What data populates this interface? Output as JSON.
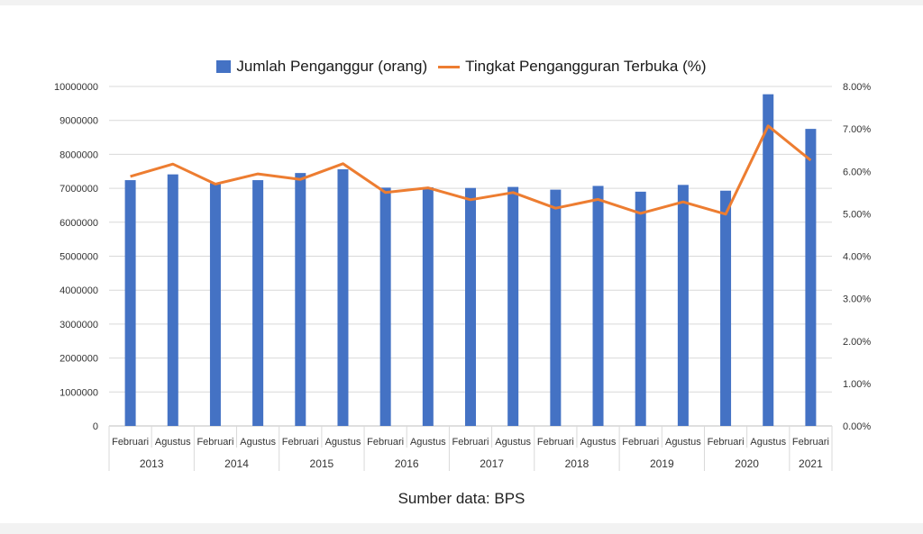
{
  "chart_data": {
    "type": "bar",
    "legend": {
      "bar_label": "Jumlah Penganggur (orang)",
      "line_label": "Tingkat Pengangguran Terbuka (%)",
      "placement": "top"
    },
    "categories": [
      {
        "month": "Februari",
        "year": "2013"
      },
      {
        "month": "Agustus",
        "year": "2013"
      },
      {
        "month": "Februari",
        "year": "2014"
      },
      {
        "month": "Agustus",
        "year": "2014"
      },
      {
        "month": "Februari",
        "year": "2015"
      },
      {
        "month": "Agustus",
        "year": "2015"
      },
      {
        "month": "Februari",
        "year": "2016"
      },
      {
        "month": "Agustus",
        "year": "2016"
      },
      {
        "month": "Februari",
        "year": "2017"
      },
      {
        "month": "Agustus",
        "year": "2017"
      },
      {
        "month": "Februari",
        "year": "2018"
      },
      {
        "month": "Agustus",
        "year": "2018"
      },
      {
        "month": "Februari",
        "year": "2019"
      },
      {
        "month": "Agustus",
        "year": "2019"
      },
      {
        "month": "Februari",
        "year": "2020"
      },
      {
        "month": "Agustus",
        "year": "2020"
      },
      {
        "month": "Februari",
        "year": "2021"
      }
    ],
    "year_groups": [
      "2013",
      "2014",
      "2015",
      "2016",
      "2017",
      "2018",
      "2019",
      "2020",
      "2021"
    ],
    "series": [
      {
        "name": "Jumlah Penganggur (orang)",
        "type": "bar",
        "axis": "left",
        "color": "#4472c4",
        "values": [
          7240000,
          7410000,
          7150000,
          7240000,
          7450000,
          7560000,
          7020000,
          7030000,
          7010000,
          7040000,
          6960000,
          7070000,
          6900000,
          7100000,
          6930000,
          9770000,
          8750000
        ]
      },
      {
        "name": "Tingkat Pengangguran Terbuka (%)",
        "type": "line",
        "axis": "right",
        "color": "#ed7d31",
        "values": [
          5.88,
          6.17,
          5.7,
          5.94,
          5.81,
          6.18,
          5.5,
          5.61,
          5.33,
          5.5,
          5.13,
          5.34,
          5.01,
          5.28,
          4.99,
          7.07,
          6.26
        ]
      }
    ],
    "y_left": {
      "min": 0,
      "max": 10000000,
      "ticks": [
        "0",
        "1000000",
        "2000000",
        "3000000",
        "4000000",
        "5000000",
        "6000000",
        "7000000",
        "8000000",
        "9000000",
        "10000000"
      ]
    },
    "y_right": {
      "min": 0,
      "max": 8,
      "ticks": [
        "0.00%",
        "1.00%",
        "2.00%",
        "3.00%",
        "4.00%",
        "5.00%",
        "6.00%",
        "7.00%",
        "8.00%"
      ]
    },
    "grid": true
  },
  "source_text": "Sumber data: BPS"
}
